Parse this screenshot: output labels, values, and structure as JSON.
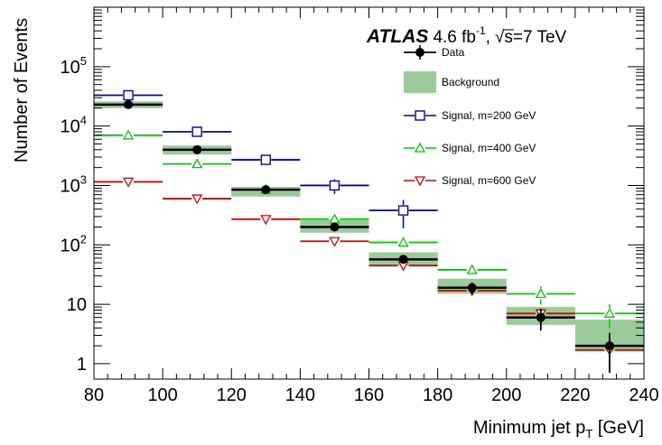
{
  "chart_data": {
    "type": "scatter",
    "title": "",
    "xlabel": "Minimum jet p",
    "xlabel_sub": "T",
    "xlabel_unit": " [GeV]",
    "ylabel": "Number of Events",
    "xlim": [
      80,
      240
    ],
    "ylim": [
      0.55,
      1000000
    ],
    "yscale": "log",
    "x_ticks": [
      "80",
      "100",
      "120",
      "140",
      "160",
      "180",
      "200",
      "220",
      "240"
    ],
    "y_ticks": [
      {
        "value": 1,
        "base": "1",
        "exp": ""
      },
      {
        "value": 10,
        "base": "10",
        "exp": ""
      },
      {
        "value": 100,
        "base": "10",
        "exp": "2"
      },
      {
        "value": 1000,
        "base": "10",
        "exp": "3"
      },
      {
        "value": 10000,
        "base": "10",
        "exp": "4"
      },
      {
        "value": 100000,
        "base": "10",
        "exp": "5"
      }
    ],
    "annotation": {
      "experiment": "ATLAS",
      "lumi": "4.6 fb",
      "lumi_exp": "-1",
      "separator": ",",
      "energy_root": "s",
      "energy_value": "=7 TeV"
    },
    "legend_position": "top-right",
    "bins": [
      [
        80,
        100
      ],
      [
        100,
        120
      ],
      [
        120,
        140
      ],
      [
        140,
        160
      ],
      [
        160,
        180
      ],
      [
        180,
        200
      ],
      [
        200,
        220
      ],
      [
        220,
        240
      ]
    ],
    "series": [
      {
        "name": "Data",
        "kind": "data",
        "color": "#000000",
        "marker": "circle",
        "x": [
          90,
          110,
          130,
          150,
          170,
          190,
          210,
          230
        ],
        "values": [
          23000,
          4000,
          850,
          200,
          57,
          19,
          6,
          2
        ],
        "err_low": [
          150,
          65,
          30,
          14,
          7.5,
          4.4,
          2.4,
          1.3
        ],
        "err_high": [
          150,
          65,
          30,
          14,
          7.5,
          4.4,
          2.4,
          1.3
        ]
      },
      {
        "name": "Background",
        "kind": "band",
        "color": "#99cc99",
        "values": [
          23000,
          4000,
          800,
          210,
          60,
          21,
          6.5,
          2
        ],
        "band_low": [
          20000,
          3300,
          650,
          160,
          45,
          15,
          4.5,
          1.6
        ],
        "band_high": [
          26000,
          4700,
          950,
          260,
          75,
          27,
          9,
          5.5
        ]
      },
      {
        "name": "Signal, m=200 GeV",
        "kind": "signal",
        "color": "#0000cc",
        "marker": "square-open",
        "x": [
          90,
          110,
          130,
          150,
          170
        ],
        "values": [
          33000,
          8000,
          2700,
          1000,
          380
        ],
        "err_low": [
          180,
          90,
          52,
          280,
          190
        ],
        "err_high": [
          180,
          90,
          52,
          280,
          190
        ]
      },
      {
        "name": "Signal, m=400 GeV",
        "kind": "signal",
        "color": "#00cc00",
        "marker": "triangle-up-open",
        "x": [
          90,
          110,
          130,
          150,
          170,
          190,
          210,
          230
        ],
        "values": [
          7000,
          2300,
          850,
          270,
          110,
          38,
          15,
          7
        ],
        "err_low": [
          0,
          0,
          0,
          0,
          0,
          4,
          5,
          3
        ],
        "err_high": [
          0,
          0,
          0,
          0,
          0,
          4,
          5,
          3
        ]
      },
      {
        "name": "Signal, m=600 GeV",
        "kind": "signal",
        "color": "#dd0000",
        "marker": "triangle-down-open",
        "x": [
          90,
          110,
          130,
          150,
          170,
          190,
          210,
          230
        ],
        "values": [
          1150,
          600,
          270,
          115,
          45,
          17,
          7,
          1.7
        ],
        "err_low": [
          0,
          0,
          0,
          0,
          0,
          0,
          0,
          0
        ],
        "err_high": [
          0,
          0,
          0,
          0,
          0,
          0,
          0,
          0
        ]
      }
    ]
  }
}
